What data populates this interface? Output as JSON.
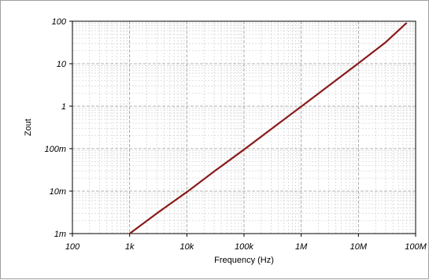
{
  "chart_data": {
    "type": "line",
    "title": "",
    "xlabel": "Frequency (Hz)",
    "ylabel": "Zout",
    "xscale": "log",
    "yscale": "log",
    "xlim": [
      100,
      100000000
    ],
    "ylim": [
      0.001,
      100
    ],
    "x_ticks": [
      {
        "value": 100,
        "label": "100"
      },
      {
        "value": 1000,
        "label": "1k"
      },
      {
        "value": 10000,
        "label": "10k"
      },
      {
        "value": 100000,
        "label": "100k"
      },
      {
        "value": 1000000,
        "label": "1M"
      },
      {
        "value": 10000000,
        "label": "10M"
      },
      {
        "value": 100000000,
        "label": "100M"
      }
    ],
    "y_ticks": [
      {
        "value": 0.001,
        "label": "1m"
      },
      {
        "value": 0.01,
        "label": "10m"
      },
      {
        "value": 0.1,
        "label": "100m"
      },
      {
        "value": 1,
        "label": "1"
      },
      {
        "value": 10,
        "label": "10"
      },
      {
        "value": 100,
        "label": "100"
      }
    ],
    "grid": true,
    "legend": "none",
    "series": [
      {
        "color": "#8b1a1a",
        "x": [
          1000,
          3000,
          10000,
          30000,
          100000,
          300000,
          1000000,
          3000000,
          10000000,
          30000000,
          70000000
        ],
        "y": [
          0.001,
          0.003,
          0.0095,
          0.029,
          0.095,
          0.29,
          0.98,
          3.0,
          10.2,
          32,
          92
        ]
      }
    ]
  }
}
